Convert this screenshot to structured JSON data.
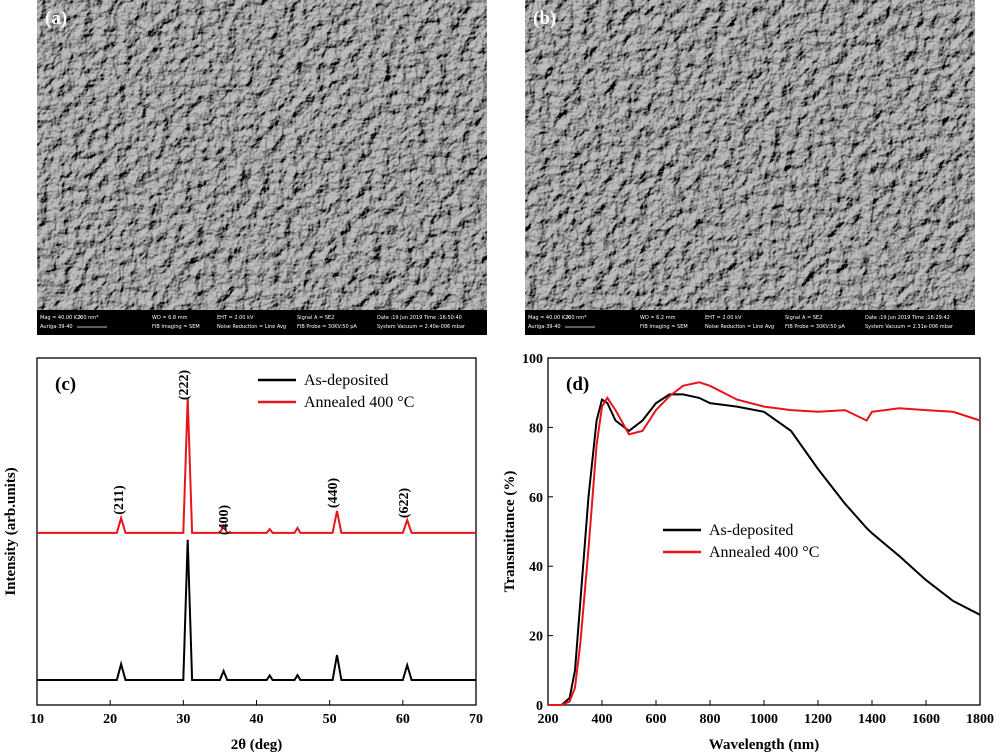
{
  "sem_images": [
    {
      "label": "(a)",
      "info": [
        "Mag = 40.00 K X",
        "200 nm*",
        "WD = 6.8 mm",
        "EHT = 2.00 kV",
        "Signal A = SE2",
        "Date :19 Jun 2019 Time :16:50:40",
        "Auriga-39-40",
        "FIB Imaging = SEM",
        "Noise Reduction = Line Avg",
        "FIB Probe = 30KV:50 pA",
        "System Vacuum = 2.40e-006 mbar"
      ]
    },
    {
      "label": "(b)",
      "info": [
        "Mag = 40.00 K X",
        "200 nm*",
        "WD = 6.2 mm",
        "EHT = 2.00 kV",
        "Signal A = SE2",
        "Date :19 Jun 2019 Time :16:29:42",
        "Auriga-39-40",
        "FIB Imaging = SEM",
        "Noise Reduction = Line Avg",
        "FIB Probe = 30KV:50 pA",
        "System Vacuum = 2.31e-006 mbar"
      ]
    }
  ],
  "chart_data": [
    {
      "type": "line",
      "label": "(c)",
      "xlabel": "2θ (deg)",
      "ylabel": "Intensity (arb.units)",
      "xlim": [
        10,
        70
      ],
      "xticks": [
        10,
        20,
        30,
        40,
        50,
        60,
        70
      ],
      "ylim": [
        0,
        100
      ],
      "legend": "upper right",
      "x": [
        10,
        20.9,
        21.5,
        22.1,
        30.0,
        30.6,
        31.2,
        35.0,
        35.5,
        36.0,
        41.4,
        41.8,
        42.2,
        45.2,
        45.6,
        46.0,
        50.4,
        51.0,
        51.6,
        60.0,
        60.6,
        61.2,
        70
      ],
      "series": [
        {
          "name": "As-deposited",
          "color": "#000000",
          "values": [
            7.2,
            7.2,
            11.8,
            7.2,
            7.2,
            47.6,
            7.2,
            7.2,
            9.8,
            7.2,
            7.2,
            8.5,
            7.2,
            7.2,
            8.6,
            7.2,
            7.2,
            14.4,
            7.2,
            7.2,
            11.5,
            7.2,
            7.2
          ]
        },
        {
          "name": "Annealed 400 °C",
          "color": "#e8141b",
          "values": [
            49.6,
            49.6,
            53.9,
            49.6,
            49.6,
            88.5,
            49.6,
            49.6,
            51.6,
            49.6,
            49.6,
            50.7,
            49.6,
            49.6,
            51.0,
            49.6,
            49.6,
            55.9,
            49.6,
            49.6,
            53.3,
            49.6,
            49.6
          ]
        }
      ],
      "annotations": [
        "(211)",
        "(222)",
        "(400)",
        "(440)",
        "(622)"
      ]
    },
    {
      "type": "line",
      "label": "(d)",
      "xlabel": "Wavelength (nm)",
      "ylabel": "Transmittance (%)",
      "xlim": [
        200,
        1800
      ],
      "xticks": [
        200,
        400,
        600,
        800,
        1000,
        1200,
        1400,
        1600,
        1800
      ],
      "ylim": [
        0,
        100
      ],
      "yticks": [
        0,
        20,
        40,
        60,
        80,
        100
      ],
      "legend": "center",
      "x": [
        200,
        250,
        280,
        300,
        320,
        350,
        380,
        400,
        420,
        450,
        500,
        550,
        600,
        650,
        700,
        760,
        800,
        900,
        1000,
        1100,
        1200,
        1300,
        1380,
        1400,
        1500,
        1600,
        1700,
        1800
      ],
      "series": [
        {
          "name": "As-deposited",
          "color": "#000000",
          "values": [
            0,
            0,
            2,
            10,
            30,
            60,
            82,
            88,
            87,
            82,
            79,
            82,
            87,
            89.5,
            89.5,
            88.5,
            87,
            86,
            84.5,
            79,
            68,
            58,
            51,
            49.5,
            43,
            36,
            30,
            26
          ]
        },
        {
          "name": "Annealed 400 °C",
          "color": "#e8141b",
          "values": [
            0,
            0,
            1,
            5,
            18,
            45,
            75,
            86,
            88.5,
            85,
            78,
            79,
            85,
            89,
            92,
            93,
            92,
            88,
            86,
            85,
            84.5,
            85,
            82,
            84.5,
            85.5,
            85,
            84.5,
            82
          ]
        }
      ]
    }
  ]
}
